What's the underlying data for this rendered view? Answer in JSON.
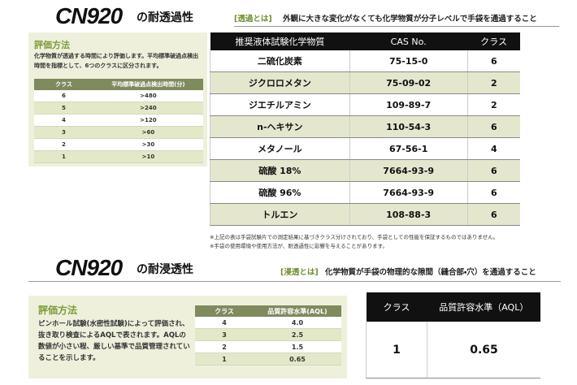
{
  "sections": [
    {
      "brand": "CN920",
      "title": "の耐透過性",
      "definition_label": "[透過とは]",
      "definition": "外観に大きな変化がなくても化学物質が分子レベルで手袋を通過すること",
      "method": {
        "title": "評価方法",
        "text": "化学物質が透過する時間により評価します。平均標準破過点検出時間を指標として、6つのクラスに区分されます。",
        "table": {
          "headers": [
            "クラス",
            "平均標準破過点検出時間(分)"
          ],
          "rows": [
            [
              "6",
              ">480"
            ],
            [
              "5",
              ">240"
            ],
            [
              "4",
              ">120"
            ],
            [
              "3",
              ">60"
            ],
            [
              "2",
              ">30"
            ],
            [
              "1",
              ">10"
            ]
          ]
        }
      },
      "table": {
        "headers": [
          "推奨液体試験化学物質",
          "CAS No.",
          "クラス"
        ],
        "rows": [
          [
            "二硫化炭素",
            "75-15-0",
            "6"
          ],
          [
            "ジクロロメタン",
            "75-09-02",
            "2"
          ],
          [
            "ジエチルアミン",
            "109-89-7",
            "2"
          ],
          [
            "n-ヘキサン",
            "110-54-3",
            "6"
          ],
          [
            "メタノール",
            "67-56-1",
            "4"
          ],
          [
            "硫酸 18%",
            "7664-93-9",
            "6"
          ],
          [
            "硫酸 96%",
            "7664-93-9",
            "6"
          ],
          [
            "トルエン",
            "108-88-3",
            "6"
          ]
        ]
      },
      "notes": [
        "※上記の表は手袋試験片での測定結果に基づきクラス分けされており、手袋としての性能を保証するものではありません。",
        "※手袋の使用環境や使用方法が、耐透過性に影響を与えることがあります。"
      ]
    },
    {
      "brand": "CN920",
      "title": "の耐浸透性",
      "definition_label": "[浸透とは]",
      "definition": "化学物質が手袋の物理的な隙間（縫合部・穴）を通過すること",
      "method": {
        "title": "評価方法",
        "text": "ピンホール試験(水密性試験)によって評価され、抜き取り検査によるAQLで表されます。AQLの数値が小さい程、厳しい基準で品質管理されていることを示します。",
        "table": {
          "headers": [
            "クラス",
            "品質許容水準(AQL)"
          ],
          "rows": [
            [
              "4",
              "4.0"
            ],
            [
              "3",
              "2.5"
            ],
            [
              "2",
              "1.5"
            ],
            [
              "1",
              "0.65"
            ]
          ]
        }
      },
      "table": {
        "headers": [
          "クラス",
          "品質許容水準（AQL）"
        ],
        "rows": [
          [
            "1",
            "0.65"
          ]
        ]
      }
    }
  ]
}
